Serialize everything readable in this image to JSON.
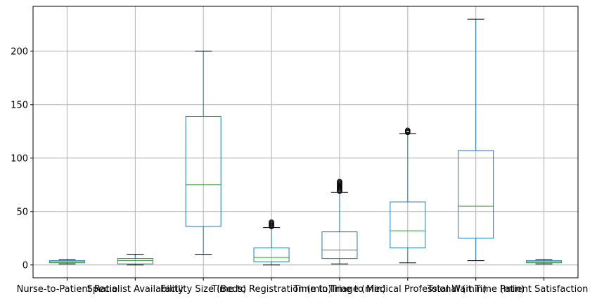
{
  "chart_data": {
    "type": "box",
    "title": "",
    "xlabel": "",
    "ylabel": "",
    "ylim": [
      -12,
      242
    ],
    "yticks": [
      0,
      50,
      100,
      150,
      200
    ],
    "grid": true,
    "colors": {
      "box": "#1f77b4",
      "median": "#2ca02c",
      "whisker": "#1f77b4",
      "cap": "#000000",
      "outlier": "#000000",
      "grid": "#b0b0b0"
    },
    "categories": [
      "Nurse-to-Patient Ratio",
      "Specialist Availability",
      "Facility Size (Beds)",
      "Time to Registration (min)",
      "Time to Triage (min)",
      "Time to Medical Professional (min)",
      "Total Wait Time (min)",
      "Patient Satisfaction"
    ],
    "boxes": [
      {
        "whislo": 1,
        "q1": 2,
        "med": 3,
        "q3": 4,
        "whishi": 5,
        "fliers": []
      },
      {
        "whislo": 0,
        "q1": 1,
        "med": 4,
        "q3": 6,
        "whishi": 10,
        "fliers": []
      },
      {
        "whislo": 10,
        "q1": 36,
        "med": 75,
        "q3": 139,
        "whishi": 200,
        "fliers": []
      },
      {
        "whislo": 0,
        "q1": 3,
        "med": 7,
        "q3": 16,
        "whishi": 35,
        "fliers": [
          36,
          37,
          38,
          39,
          40
        ]
      },
      {
        "whislo": 1,
        "q1": 6,
        "med": 14,
        "q3": 31,
        "whishi": 68,
        "fliers": [
          69,
          70,
          71,
          72,
          73,
          74,
          75,
          76,
          77,
          78
        ]
      },
      {
        "whislo": 2,
        "q1": 16,
        "med": 32,
        "q3": 59,
        "whishi": 123,
        "fliers": [
          124,
          125,
          126
        ]
      },
      {
        "whislo": 4,
        "q1": 25,
        "med": 55,
        "q3": 107,
        "whishi": 230,
        "fliers": []
      },
      {
        "whislo": 1,
        "q1": 2,
        "med": 3,
        "q3": 4,
        "whishi": 5,
        "fliers": []
      }
    ]
  }
}
